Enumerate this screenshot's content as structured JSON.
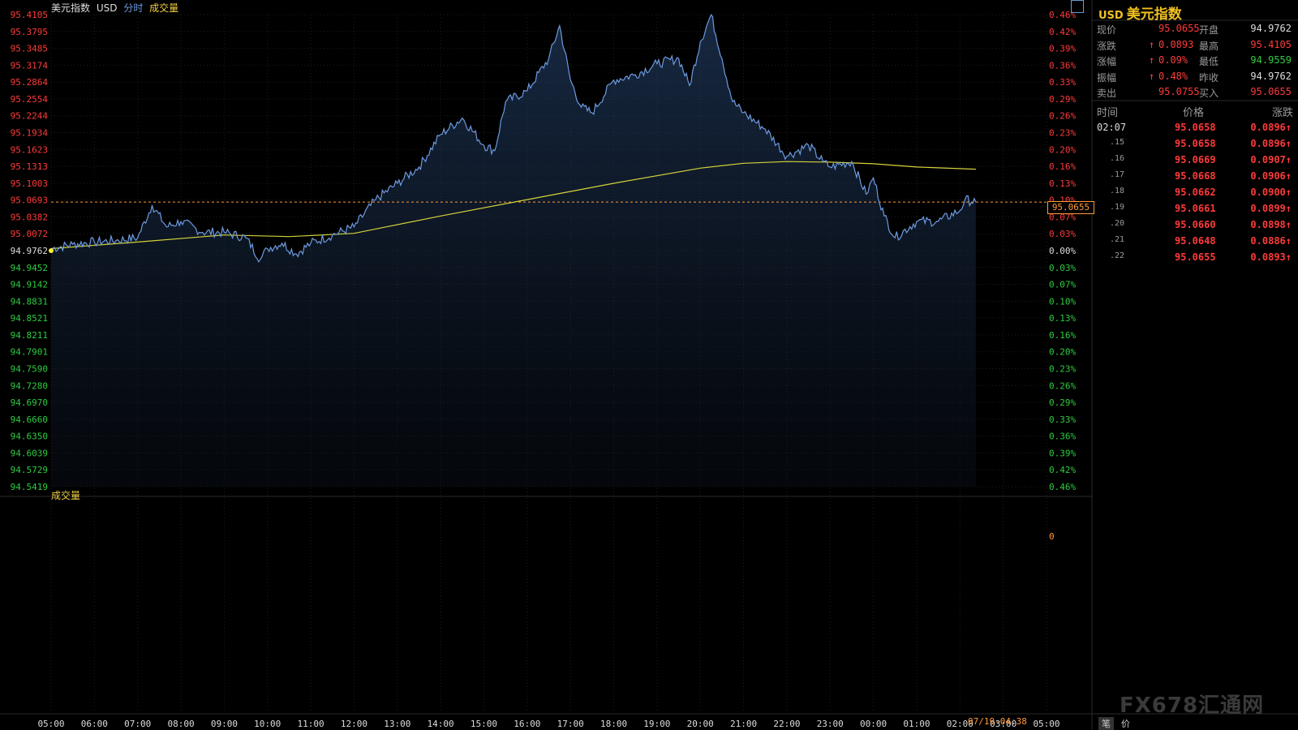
{
  "header": {
    "name": "美元指数",
    "code": "USD",
    "mode": "分时",
    "volume_tab": "成交量"
  },
  "colors": {
    "price_line": "#6d9be0",
    "avg_line": "#d4d23a",
    "up": "#ff3a3a",
    "down": "#2ecc40",
    "grid": "#1e1e1e",
    "ref_line": "#ff9a3a"
  },
  "panel": {
    "symbol": "USD",
    "title": "美元指数",
    "quote": [
      {
        "l1": "现价",
        "v1": "95.0655",
        "c1": "red",
        "a1": "",
        "l2": "开盘",
        "v2": "94.9762",
        "c2": "white"
      },
      {
        "l1": "涨跌",
        "v1": "0.0893",
        "c1": "red",
        "a1": "↑",
        "l2": "最高",
        "v2": "95.4105",
        "c2": "red"
      },
      {
        "l1": "涨幅",
        "v1": "0.09%",
        "c1": "red",
        "a1": "↑",
        "l2": "最低",
        "v2": "94.9559",
        "c2": "green"
      },
      {
        "l1": "振幅",
        "v1": "0.48%",
        "c1": "red",
        "a1": "↑",
        "l2": "昨收",
        "v2": "94.9762",
        "c2": "white"
      },
      {
        "l1": "卖出",
        "v1": "95.0755",
        "c1": "red",
        "a1": "",
        "l2": "买入",
        "v2": "95.0655",
        "c2": "red"
      }
    ],
    "ticks_header": {
      "time": "时间",
      "price": "价格",
      "change": "涨跌"
    },
    "ticks": [
      {
        "time": "02:07",
        "price": "95.0658",
        "change": "0.0896↑"
      },
      {
        "time": ".15",
        "price": "95.0658",
        "change": "0.0896↑"
      },
      {
        "time": ".16",
        "price": "95.0669",
        "change": "0.0907↑"
      },
      {
        "time": ".17",
        "price": "95.0668",
        "change": "0.0906↑"
      },
      {
        "time": ".18",
        "price": "95.0662",
        "change": "0.0900↑"
      },
      {
        "time": ".19",
        "price": "95.0661",
        "change": "0.0899↑"
      },
      {
        "time": ".20",
        "price": "95.0660",
        "change": "0.0898↑"
      },
      {
        "time": ".21",
        "price": "95.0648",
        "change": "0.0886↑"
      },
      {
        "time": ".22",
        "price": "95.0655",
        "change": "0.0893↑"
      }
    ]
  },
  "bottom_bar": {
    "date_time": "07/19-04:38",
    "btn_ticks": "笔",
    "btn_price": "价",
    "logo": "FX678汇通网"
  },
  "chart_data": {
    "type": "line",
    "title": "",
    "price_axis_left": [
      "95.4105",
      "95.3795",
      "95.3485",
      "95.3174",
      "95.2864",
      "95.2554",
      "95.2244",
      "95.1934",
      "95.1623",
      "95.1313",
      "95.1003",
      "95.0693",
      "95.0382",
      "95.0072",
      "94.9762",
      "94.9452",
      "94.9142",
      "94.8831",
      "94.8521",
      "94.8211",
      "94.7901",
      "94.7590",
      "94.7280",
      "94.6970",
      "94.6660",
      "94.6350",
      "94.6039",
      "94.5729",
      "94.5419"
    ],
    "percent_axis_right": [
      "0.46%",
      "0.42%",
      "0.39%",
      "0.36%",
      "0.33%",
      "0.29%",
      "0.26%",
      "0.23%",
      "0.20%",
      "0.16%",
      "0.13%",
      "0.10%",
      "0.07%",
      "0.03%",
      "0.00%",
      "0.03%",
      "0.07%",
      "0.10%",
      "0.13%",
      "0.16%",
      "0.20%",
      "0.23%",
      "0.26%",
      "0.29%",
      "0.33%",
      "0.36%",
      "0.39%",
      "0.42%",
      "0.46%"
    ],
    "ylim": [
      94.5419,
      95.4105
    ],
    "prev_close": 94.9762,
    "current_price": 95.0655,
    "current_label": "95.0655",
    "volume_zero_label": "0",
    "time_axis": [
      "05:00",
      "06:00",
      "07:00",
      "08:00",
      "09:00",
      "10:00",
      "11:00",
      "12:00",
      "13:00",
      "14:00",
      "15:00",
      "16:00",
      "17:00",
      "18:00",
      "19:00",
      "20:00",
      "21:00",
      "22:00",
      "23:00",
      "00:00",
      "01:00",
      "02:00",
      "03:00",
      "05:00"
    ],
    "series": [
      {
        "role": "price",
        "x": [
          "05:00",
          "05:30",
          "06:00",
          "06:30",
          "07:00",
          "07:20",
          "07:40",
          "08:00",
          "08:30",
          "09:00",
          "09:30",
          "09:50",
          "10:00",
          "10:20",
          "10:40",
          "11:00",
          "11:30",
          "12:00",
          "12:30",
          "13:00",
          "13:30",
          "14:00",
          "14:30",
          "15:00",
          "15:15",
          "15:30",
          "16:00",
          "16:30",
          "16:45",
          "17:00",
          "17:15",
          "17:30",
          "18:00",
          "18:30",
          "19:00",
          "19:30",
          "19:45",
          "20:00",
          "20:15",
          "20:30",
          "20:45",
          "21:00",
          "21:30",
          "22:00",
          "22:30",
          "22:50",
          "23:00",
          "23:30",
          "23:50",
          "00:00",
          "00:15",
          "00:30",
          "01:00",
          "01:30",
          "02:00",
          "02:07",
          "02:22"
        ],
        "values": [
          94.98,
          94.988,
          94.992,
          94.995,
          95.0,
          95.06,
          95.02,
          95.03,
          95.01,
          95.01,
          95.0,
          94.96,
          94.98,
          94.99,
          94.97,
          94.99,
          95.005,
          95.02,
          95.07,
          95.1,
          95.13,
          95.19,
          95.22,
          95.17,
          95.16,
          95.25,
          95.27,
          95.33,
          95.39,
          95.29,
          95.24,
          95.23,
          95.29,
          95.3,
          95.32,
          95.33,
          95.28,
          95.36,
          95.41,
          95.33,
          95.25,
          95.23,
          95.2,
          95.15,
          95.17,
          95.14,
          95.13,
          95.14,
          95.08,
          95.11,
          95.04,
          95.0,
          95.03,
          95.03,
          95.05,
          95.07,
          95.0655
        ]
      },
      {
        "role": "average",
        "x": [
          "05:00",
          "07:00",
          "09:00",
          "10:30",
          "12:00",
          "14:00",
          "16:00",
          "18:00",
          "20:00",
          "21:00",
          "22:00",
          "23:00",
          "00:00",
          "01:00",
          "02:22"
        ],
        "values": [
          94.98,
          94.992,
          95.005,
          95.002,
          95.008,
          95.04,
          95.07,
          95.1,
          95.128,
          95.137,
          95.14,
          95.139,
          95.136,
          95.13,
          95.126
        ]
      }
    ],
    "grid": true
  }
}
